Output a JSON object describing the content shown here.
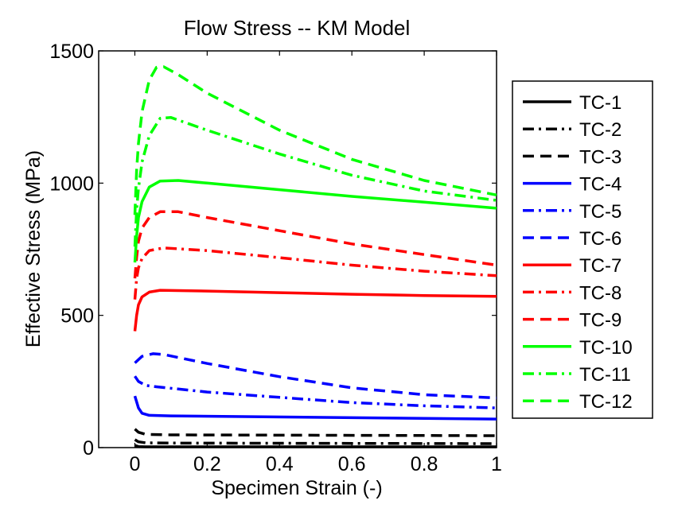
{
  "chart_data": {
    "type": "line",
    "title": "Flow Stress -- KM Model",
    "xlabel": "Specimen Strain (-)",
    "ylabel": "Effective Stress (MPa)",
    "xlim": [
      -0.1,
      1.0
    ],
    "ylim": [
      0,
      1500
    ],
    "xticks": [
      0,
      0.2,
      0.4,
      0.6,
      0.8,
      1
    ],
    "xtick_labels": [
      "0",
      "0.2",
      "0.4",
      "0.6",
      "0.8",
      "1"
    ],
    "yticks": [
      0,
      500,
      1000,
      1500
    ],
    "ytick_labels": [
      "0",
      "500",
      "1000",
      "1500"
    ],
    "grid": false,
    "legend_position": "right, outside",
    "series": [
      {
        "name": "TC-1",
        "color": "#000000",
        "style": "solid",
        "points": [
          [
            0.0,
            8
          ],
          [
            0.01,
            4
          ],
          [
            0.03,
            3
          ],
          [
            1.0,
            3
          ]
        ]
      },
      {
        "name": "TC-2",
        "color": "#000000",
        "style": "dashdot",
        "points": [
          [
            0.0,
            30
          ],
          [
            0.01,
            22
          ],
          [
            0.03,
            18
          ],
          [
            0.1,
            17
          ],
          [
            1.0,
            15
          ]
        ]
      },
      {
        "name": "TC-3",
        "color": "#000000",
        "style": "dashed",
        "points": [
          [
            0.0,
            70
          ],
          [
            0.01,
            58
          ],
          [
            0.03,
            50
          ],
          [
            0.1,
            48
          ],
          [
            1.0,
            45
          ]
        ]
      },
      {
        "name": "TC-4",
        "color": "#0000ff",
        "style": "solid",
        "points": [
          [
            0.0,
            195
          ],
          [
            0.01,
            150
          ],
          [
            0.02,
            130
          ],
          [
            0.04,
            122
          ],
          [
            0.1,
            120
          ],
          [
            1.0,
            108
          ]
        ]
      },
      {
        "name": "TC-5",
        "color": "#0000ff",
        "style": "dashdot",
        "points": [
          [
            0.0,
            270
          ],
          [
            0.01,
            250
          ],
          [
            0.03,
            235
          ],
          [
            0.06,
            230
          ],
          [
            0.2,
            210
          ],
          [
            0.4,
            190
          ],
          [
            0.6,
            170
          ],
          [
            0.8,
            158
          ],
          [
            1.0,
            150
          ]
        ]
      },
      {
        "name": "TC-6",
        "color": "#0000ff",
        "style": "dashed",
        "points": [
          [
            0.0,
            320
          ],
          [
            0.02,
            345
          ],
          [
            0.05,
            355
          ],
          [
            0.08,
            352
          ],
          [
            0.2,
            318
          ],
          [
            0.4,
            268
          ],
          [
            0.6,
            226
          ],
          [
            0.8,
            200
          ],
          [
            1.0,
            188
          ]
        ]
      },
      {
        "name": "TC-7",
        "color": "#ff0000",
        "style": "solid",
        "points": [
          [
            0.0,
            440
          ],
          [
            0.005,
            500
          ],
          [
            0.01,
            540
          ],
          [
            0.02,
            570
          ],
          [
            0.04,
            588
          ],
          [
            0.07,
            595
          ],
          [
            0.2,
            592
          ],
          [
            0.4,
            586
          ],
          [
            0.6,
            580
          ],
          [
            0.8,
            575
          ],
          [
            1.0,
            572
          ]
        ]
      },
      {
        "name": "TC-8",
        "color": "#ff0000",
        "style": "dashdot",
        "points": [
          [
            0.0,
            560
          ],
          [
            0.005,
            640
          ],
          [
            0.01,
            680
          ],
          [
            0.02,
            715
          ],
          [
            0.04,
            745
          ],
          [
            0.08,
            755
          ],
          [
            0.2,
            745
          ],
          [
            0.4,
            718
          ],
          [
            0.6,
            690
          ],
          [
            0.8,
            667
          ],
          [
            1.0,
            650
          ]
        ]
      },
      {
        "name": "TC-9",
        "color": "#ff0000",
        "style": "dashed",
        "points": [
          [
            0.0,
            640
          ],
          [
            0.005,
            720
          ],
          [
            0.01,
            780
          ],
          [
            0.02,
            830
          ],
          [
            0.04,
            870
          ],
          [
            0.07,
            892
          ],
          [
            0.12,
            892
          ],
          [
            0.2,
            870
          ],
          [
            0.4,
            820
          ],
          [
            0.6,
            770
          ],
          [
            0.8,
            730
          ],
          [
            1.0,
            690
          ]
        ]
      },
      {
        "name": "TC-10",
        "color": "#00ff00",
        "style": "solid",
        "points": [
          [
            0.0,
            700
          ],
          [
            0.005,
            800
          ],
          [
            0.01,
            870
          ],
          [
            0.02,
            930
          ],
          [
            0.04,
            985
          ],
          [
            0.07,
            1008
          ],
          [
            0.12,
            1010
          ],
          [
            0.2,
            1000
          ],
          [
            0.4,
            975
          ],
          [
            0.6,
            950
          ],
          [
            0.8,
            928
          ],
          [
            1.0,
            905
          ]
        ]
      },
      {
        "name": "TC-11",
        "color": "#00ff00",
        "style": "dashdot",
        "points": [
          [
            0.0,
            760
          ],
          [
            0.005,
            900
          ],
          [
            0.01,
            980
          ],
          [
            0.02,
            1080
          ],
          [
            0.04,
            1180
          ],
          [
            0.07,
            1245
          ],
          [
            0.1,
            1248
          ],
          [
            0.2,
            1200
          ],
          [
            0.4,
            1110
          ],
          [
            0.6,
            1030
          ],
          [
            0.8,
            970
          ],
          [
            1.0,
            935
          ]
        ]
      },
      {
        "name": "TC-12",
        "color": "#00ff00",
        "style": "dashed",
        "points": [
          [
            0.0,
            880
          ],
          [
            0.005,
            1050
          ],
          [
            0.01,
            1150
          ],
          [
            0.02,
            1270
          ],
          [
            0.04,
            1390
          ],
          [
            0.06,
            1438
          ],
          [
            0.08,
            1440
          ],
          [
            0.12,
            1410
          ],
          [
            0.2,
            1340
          ],
          [
            0.4,
            1200
          ],
          [
            0.6,
            1090
          ],
          [
            0.8,
            1010
          ],
          [
            1.0,
            955
          ]
        ]
      }
    ]
  }
}
